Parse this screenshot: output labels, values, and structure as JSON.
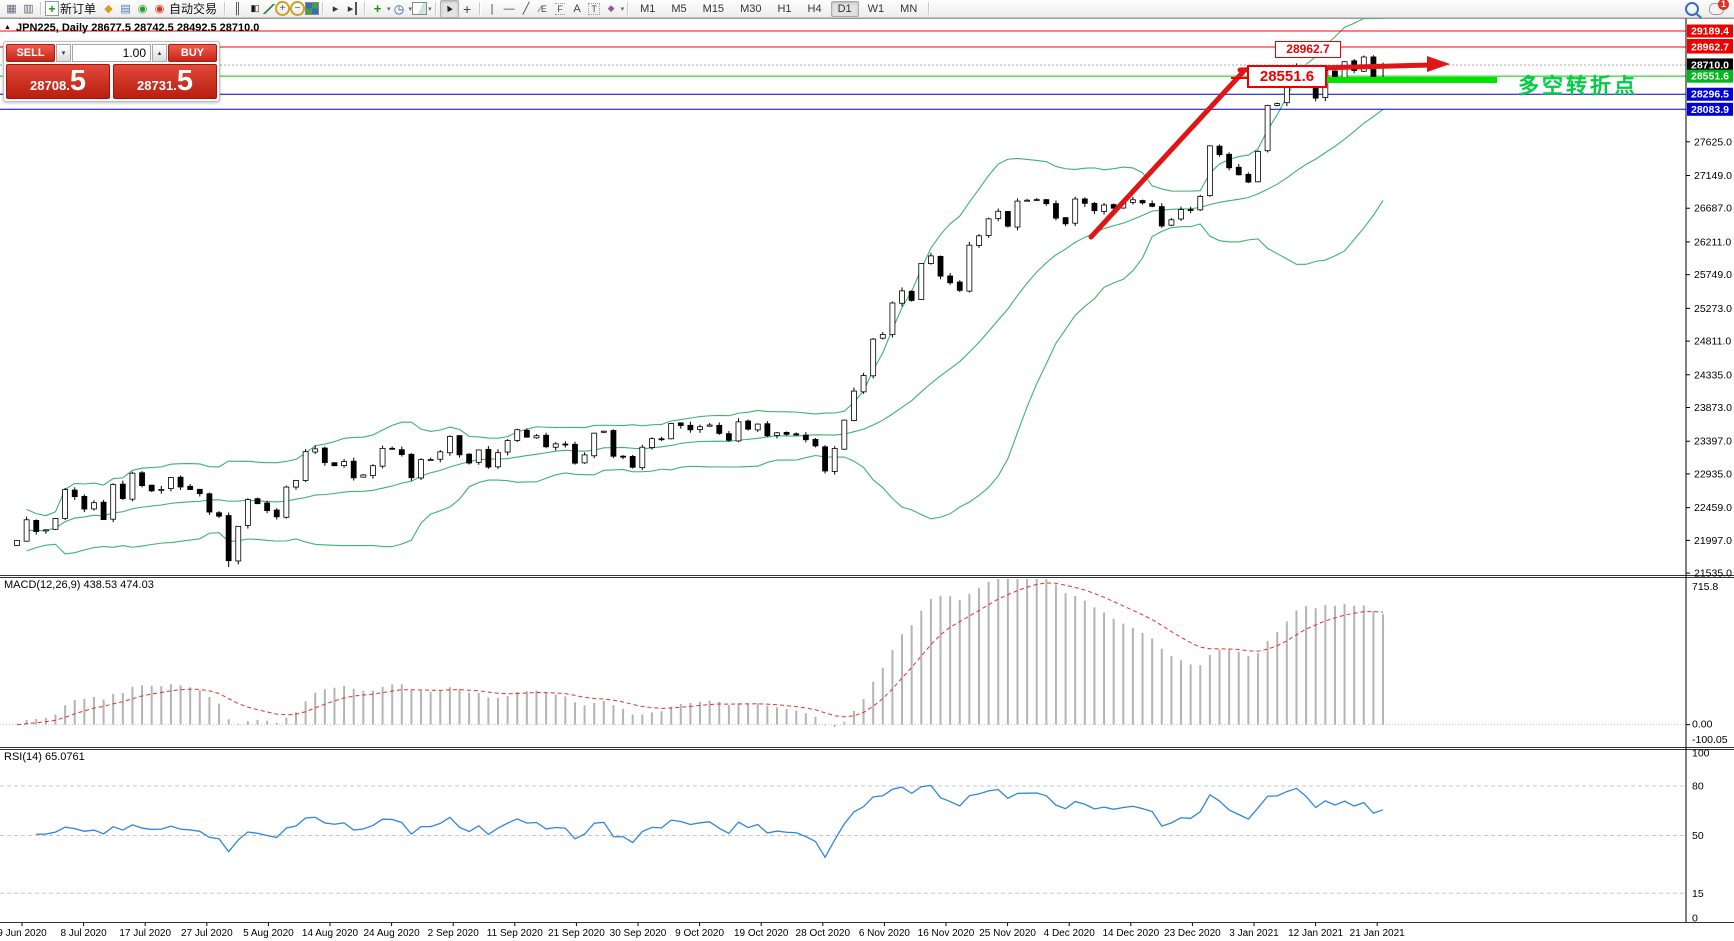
{
  "toolbar": {
    "items": [
      {
        "type": "icon",
        "name": "market-watch"
      },
      {
        "type": "icon",
        "name": "data-window"
      },
      {
        "type": "sep"
      },
      {
        "type": "button",
        "name": "new-order",
        "label": "新订单"
      },
      {
        "type": "icon",
        "name": "styles"
      },
      {
        "type": "icon",
        "name": "profiles"
      },
      {
        "type": "icon",
        "name": "signals"
      },
      {
        "type": "button",
        "name": "autotrading",
        "label": "自动交易"
      },
      {
        "type": "sep"
      },
      {
        "type": "icon",
        "name": "bar-chart"
      },
      {
        "type": "icon",
        "name": "candle-chart"
      },
      {
        "type": "icon",
        "name": "line-chart"
      },
      {
        "type": "icon",
        "name": "zoom-in"
      },
      {
        "type": "icon",
        "name": "zoom-out"
      },
      {
        "type": "icon",
        "name": "tile-windows"
      },
      {
        "type": "sep"
      },
      {
        "type": "icon",
        "name": "auto-scroll"
      },
      {
        "type": "icon",
        "name": "chart-shift"
      },
      {
        "type": "sep"
      },
      {
        "type": "icon",
        "name": "indicators",
        "dropdown": true
      },
      {
        "type": "icon",
        "name": "periods",
        "dropdown": true
      },
      {
        "type": "icon",
        "name": "templates",
        "dropdown": true
      },
      {
        "type": "sep"
      },
      {
        "type": "icon",
        "name": "cursor",
        "pressed": true
      },
      {
        "type": "icon",
        "name": "crosshair"
      },
      {
        "type": "sep"
      },
      {
        "type": "icon",
        "name": "vertical-line"
      },
      {
        "type": "icon",
        "name": "horizontal-line"
      },
      {
        "type": "icon",
        "name": "trendline"
      },
      {
        "type": "icon",
        "name": "equidistant-channel"
      },
      {
        "type": "icon",
        "name": "fibonacci"
      },
      {
        "type": "icon",
        "name": "text"
      },
      {
        "type": "icon",
        "name": "text-label"
      },
      {
        "type": "icon",
        "name": "arrows",
        "dropdown": true
      },
      {
        "type": "sep"
      }
    ],
    "timeframes": [
      "M1",
      "M5",
      "M15",
      "M30",
      "H1",
      "H4",
      "D1",
      "W1",
      "MN"
    ],
    "active_timeframe": "D1",
    "notification_count": "1"
  },
  "ui": {
    "chart_title": "JPN225, Daily  28677.5 28742.5 28492.5 28710.0",
    "macd_label": "MACD(12,26,9) 438.53 474.03",
    "rsi_label": "RSI(14) 65.0761"
  },
  "trade": {
    "sell_label": "SELL",
    "buy_label": "BUY",
    "volume": "1.00",
    "sell_price_main": "28708",
    "sell_price_pip": "5",
    "buy_price_main": "28731",
    "buy_price_pip": "5"
  },
  "annotations": {
    "resistance_label": "28962.7",
    "support_label": "28551.6",
    "note_text": "多空转折点",
    "note_color": "#00cc44"
  },
  "chart_data": {
    "type": "candlestick",
    "symbol": "JPN225",
    "timeframe": "Daily",
    "ohlc_current": {
      "open": 28677.5,
      "high": 28742.5,
      "low": 28492.5,
      "close": 28710.0
    },
    "bid_price": 28710.0,
    "long_wick_index": 22,
    "closes": [
      21995,
      22288,
      22122,
      22146,
      22306,
      22714,
      22615,
      22439,
      22529,
      22291,
      22785,
      22587,
      22946,
      22770,
      22696,
      22717,
      22884,
      22751,
      22715,
      22657,
      22397,
      22339,
      21710,
      22195,
      22573,
      22515,
      22418,
      22330,
      22750,
      22843,
      23249,
      23289,
      23096,
      23051,
      23110,
      22880,
      22920,
      23051,
      23296,
      23290,
      23208,
      22882,
      23139,
      23138,
      23247,
      23465,
      23205,
      23089,
      23274,
      23032,
      23235,
      23406,
      23559,
      23454,
      23475,
      23319,
      23360,
      23346,
      23087,
      23204,
      23511,
      23539,
      23185,
      23185,
      23029,
      23312,
      23433,
      23422,
      23647,
      23619,
      23558,
      23601,
      23626,
      23507,
      23410,
      23671,
      23567,
      23639,
      23474,
      23516,
      23494,
      23485,
      23418,
      23331,
      22977,
      23295,
      23695,
      24105,
      24325,
      24839,
      24905,
      25349,
      25520,
      25385,
      25906,
      26014,
      25728,
      25634,
      25527,
      26165,
      26297,
      26537,
      26644,
      26433,
      26787,
      26800,
      26809,
      26751,
      26547,
      26467,
      26817,
      26756,
      26652,
      26732,
      26687,
      26757,
      26806,
      26763,
      26714,
      26436,
      26524,
      26668,
      26656,
      26854,
      27568,
      27444,
      27258,
      27159,
      27056,
      27490,
      28139,
      28164,
      28456,
      28698,
      28519,
      28242,
      28633,
      28523,
      28756,
      28631,
      28822,
      28546,
      28710
    ],
    "level_lines": [
      {
        "label": "29189.4",
        "price": 29189.4,
        "color": "#ff0000",
        "tag": "#ee0000",
        "dashed": false
      },
      {
        "label": "28962.7",
        "price": 28962.7,
        "color": "#ff0000",
        "tag": "#ee0000",
        "dashed": false
      },
      {
        "label": "28710.0",
        "price": 28710.0,
        "color": "#aaaaaa",
        "tag": "#000000",
        "dashed": true
      },
      {
        "label": "28551.6",
        "price": 28551.6,
        "color": "#00cc00",
        "tag": "#00b818",
        "dashed": false
      },
      {
        "label": "28296.5",
        "price": 28296.5,
        "color": "#0000cd",
        "tag": "#0000d8",
        "dashed": false
      },
      {
        "label": "28083.9",
        "price": 28083.9,
        "color": "#0000cd",
        "tag": "#0000d8",
        "dashed": false
      }
    ],
    "price_axis_ticks": [
      "27625.0",
      "27149.0",
      "26687.0",
      "26211.0",
      "25749.0",
      "25273.0",
      "24811.0",
      "24335.0",
      "23873.0",
      "23397.0",
      "22935.0",
      "22459.0",
      "21997.0",
      "21535.0"
    ],
    "date_axis": [
      "9 Jun 2020",
      "8 Jul 2020",
      "17 Jul 2020",
      "27 Jul 2020",
      "5 Aug 2020",
      "14 Aug 2020",
      "24 Aug 2020",
      "2 Sep 2020",
      "11 Sep 2020",
      "21 Sep 2020",
      "30 Sep 2020",
      "9 Oct 2020",
      "19 Oct 2020",
      "28 Oct 2020",
      "6 Nov 2020",
      "16 Nov 2020",
      "25 Nov 2020",
      "4 Dec 2020",
      "14 Dec 2020",
      "23 Dec 2020",
      "3 Jan 2021",
      "12 Jan 2021",
      "21 Jan 2021"
    ],
    "macd_axis": {
      "max": "715.8",
      "zero": "0.00",
      "min": "-100.05"
    },
    "rsi_axis_labels": [
      "100",
      "80",
      "50",
      "15",
      "0"
    ],
    "rsi_level_values": [
      80,
      50,
      15
    ],
    "indicator_colors": {
      "bollinger": "#3CB371",
      "macd_hist": "#b4b4b4",
      "macd_signal": "#e03131",
      "rsi": "#2e86de"
    },
    "drawing_colors": {
      "trend_arrow": "#e01515",
      "support_bar": "#00e400"
    }
  }
}
